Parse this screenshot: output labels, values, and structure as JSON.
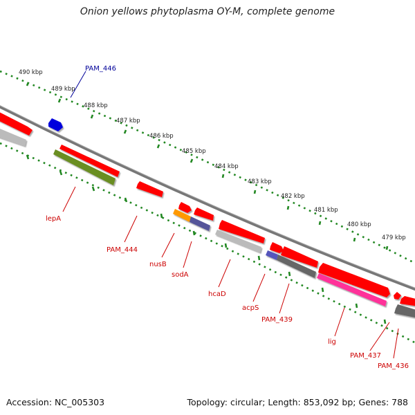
{
  "title": "Onion yellows phytoplasma OY-M, complete genome",
  "footer": {
    "accession": "Accession: NC_005303",
    "summary": "Topology: circular; Length: 853,092 bp; Genes: 788"
  },
  "ticks": [
    "490 kbp",
    "489 kbp",
    "488 kbp",
    "487 kbp",
    "486 kbp",
    "485 kbp",
    "484 kbp",
    "483 kbp",
    "482 kbp",
    "481 kbp",
    "480 kbp",
    "479 kbp"
  ],
  "gene_labels": {
    "PAM_446": "PAM_446",
    "lepA": "lepA",
    "PAM_444": "PAM_444",
    "nusB": "nusB",
    "sodA": "sodA",
    "hcaD": "hcaD",
    "acpS": "acpS",
    "PAM_439": "PAM_439",
    "lig": "lig",
    "PAM_437": "PAM_437",
    "PAM_436": "PAM_436"
  },
  "colors": {
    "cds": "#ff0000",
    "gene_label": "#cc0000",
    "highlight_label": "#000099",
    "highlight_feature": "#0000dd",
    "backbone": "#777777",
    "tick": "#228822",
    "grey_feature": "#bbbbbb",
    "dark_grey_feature": "#666666",
    "olive_feature": "#6b8e23",
    "orange_feature": "#ff9900",
    "purple_feature": "#555599",
    "magenta_feature": "#ff3399"
  }
}
